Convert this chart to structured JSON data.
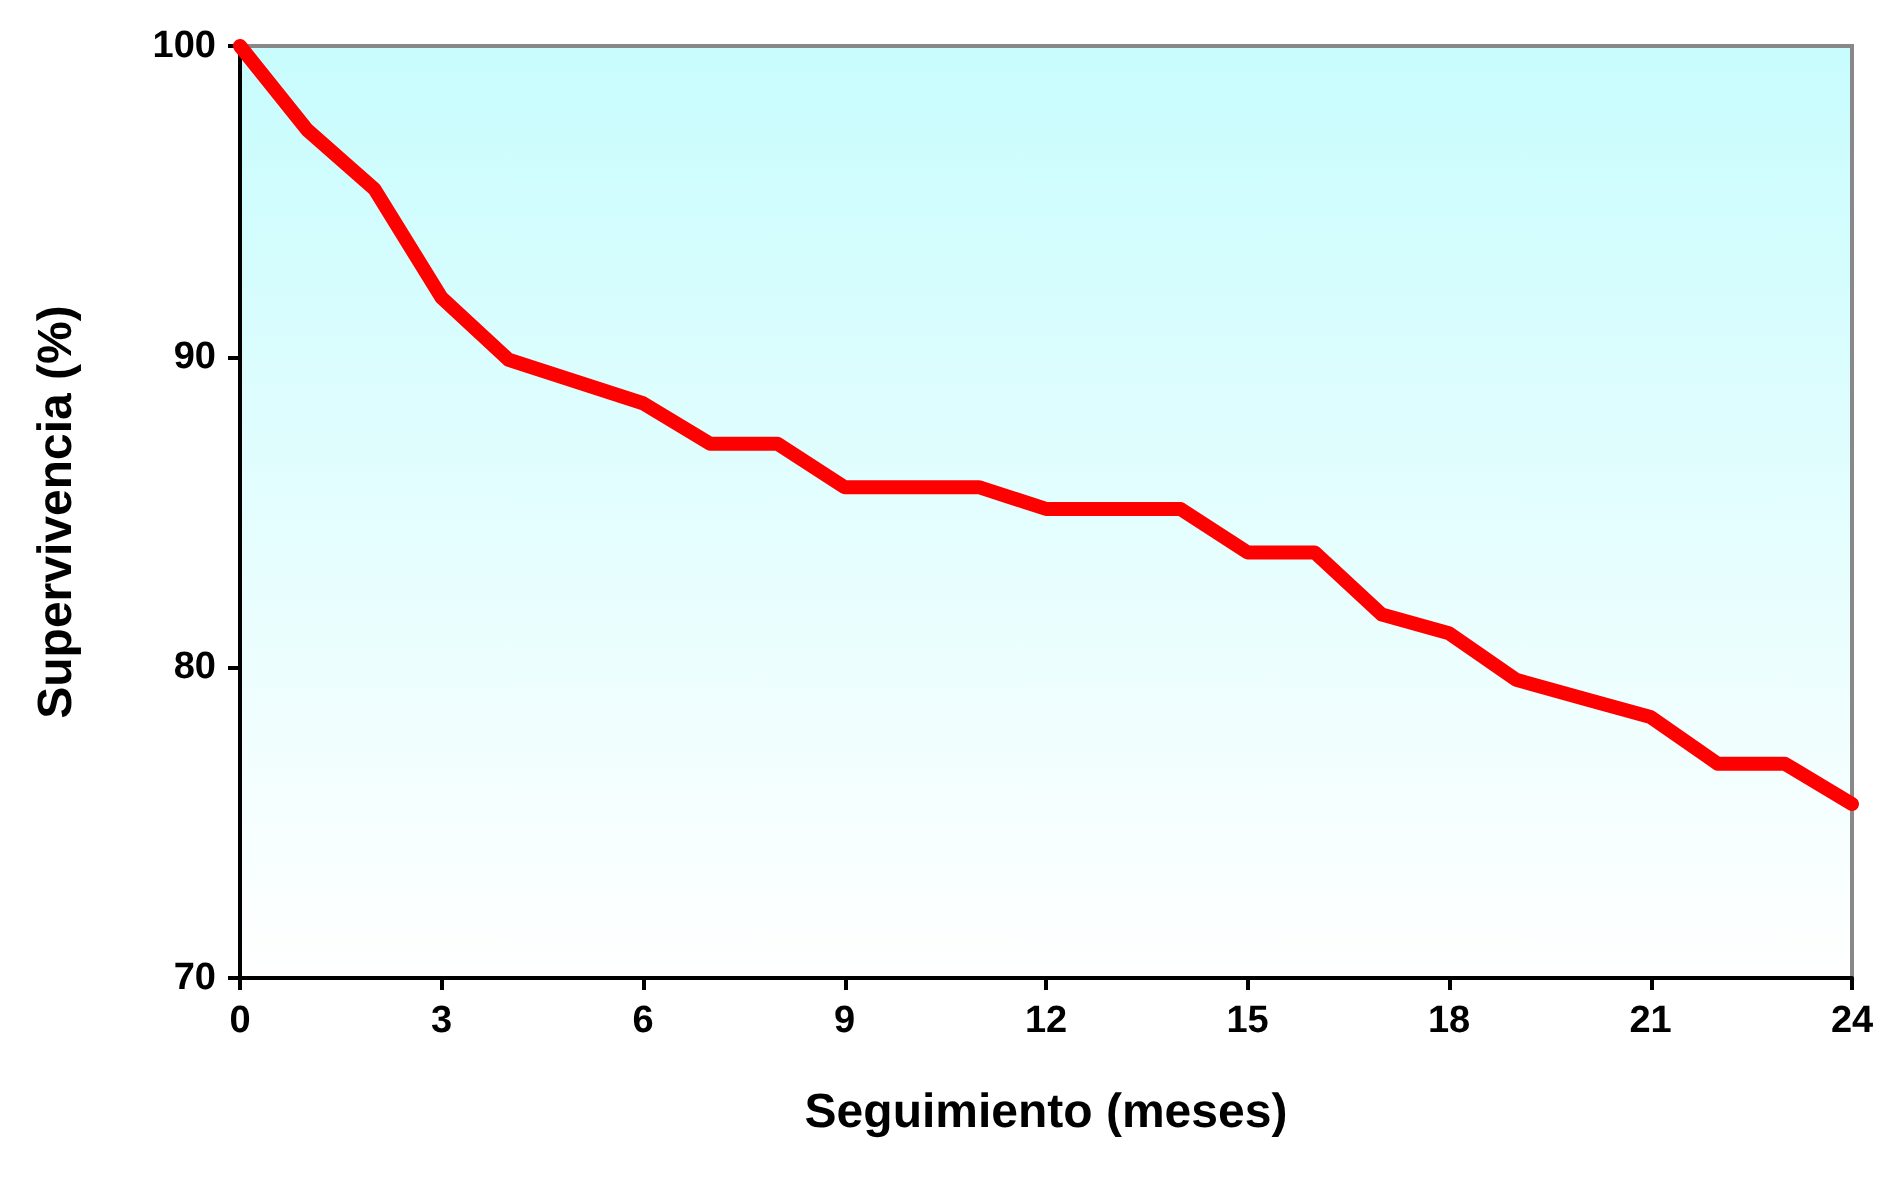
{
  "chart_data": {
    "type": "line",
    "xlabel": "Seguimiento (meses)",
    "ylabel": "Supervivencia (%)",
    "x": [
      0,
      1,
      2,
      3,
      4,
      5,
      6,
      7,
      8,
      9,
      10,
      11,
      12,
      13,
      14,
      15,
      16,
      17,
      18,
      19,
      20,
      21,
      22,
      23,
      24
    ],
    "series": [
      {
        "color": "#ff0000",
        "values": [
          100,
          97.3,
          95.4,
          91.9,
          89.9,
          89.2,
          88.5,
          87.2,
          87.2,
          85.8,
          85.8,
          85.8,
          85.1,
          85.1,
          85.1,
          83.7,
          83.7,
          81.7,
          81.1,
          79.6,
          79.0,
          78.4,
          76.9,
          76.9,
          75.6
        ]
      }
    ],
    "xlim": [
      0,
      24
    ],
    "xticks": [
      0,
      3,
      6,
      9,
      12,
      15,
      18,
      21,
      24
    ],
    "ylim": [
      70,
      100
    ],
    "yticks": [
      70,
      80,
      90,
      100
    ],
    "grid": false,
    "line_style": "solid"
  }
}
